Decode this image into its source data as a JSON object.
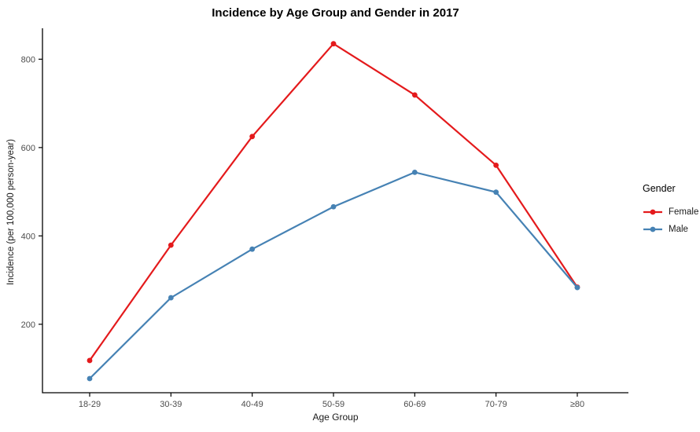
{
  "chart_data": {
    "type": "line",
    "title": "Incidence by Age Group and Gender in 2017",
    "xlabel": "Age Group",
    "ylabel": "Incidence (per 100,000 person-year)",
    "legend_title": "Gender",
    "categories": [
      "18-29",
      "30-39",
      "40-49",
      "50-59",
      "60-69",
      "70-79",
      "≥80"
    ],
    "series": [
      {
        "name": "Female",
        "color": "#e41a1c",
        "values": [
          118,
          379,
          625,
          835,
          719,
          560,
          284
        ]
      },
      {
        "name": "Male",
        "color": "#4682b4",
        "values": [
          77,
          260,
          370,
          466,
          544,
          499,
          283
        ]
      }
    ],
    "yticks": [
      200,
      400,
      600,
      800
    ],
    "ylim": [
      45,
      870
    ],
    "grid": false,
    "legend_position": "right",
    "axis_color": "#000000",
    "tick_label_color": "#4d4d4d"
  }
}
